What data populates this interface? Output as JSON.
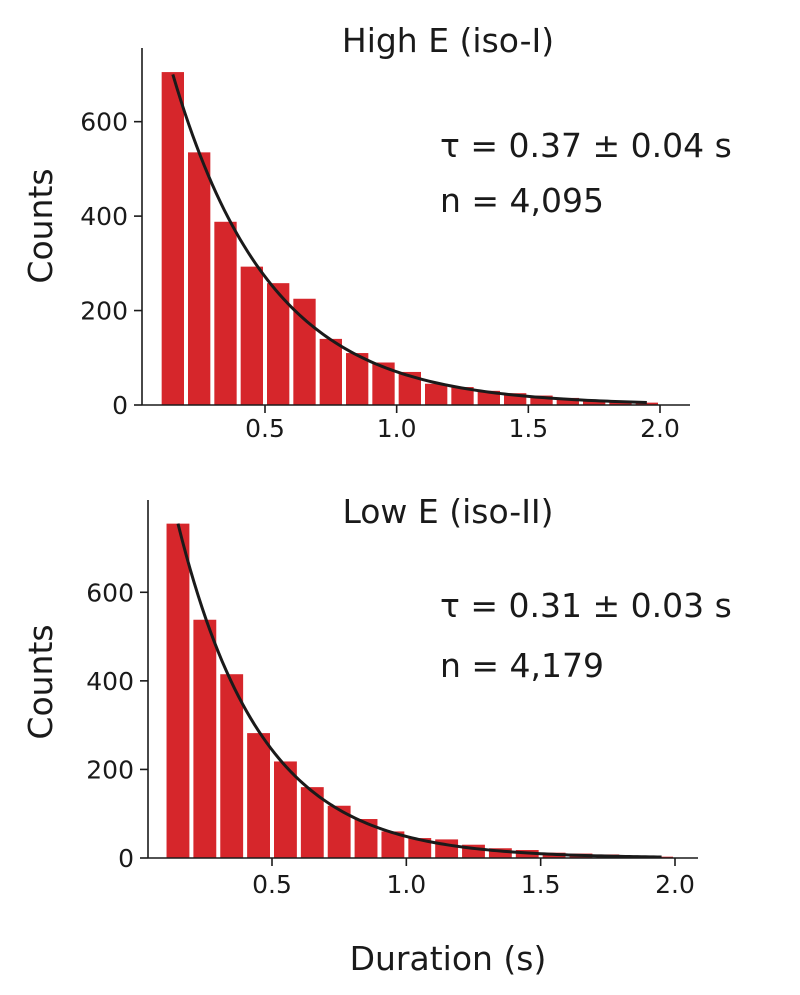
{
  "colors": {
    "bar": "#d6262b",
    "fit": "#1a1a1a",
    "text": "#1a1a1a"
  },
  "x_axis_label": "Duration (s)",
  "chart_data": [
    {
      "type": "bar",
      "title": "High E (iso-I)",
      "ylabel": "Counts",
      "xlabel": "Duration (s)",
      "xlim": [
        0.05,
        2.05
      ],
      "ylim": [
        0,
        720
      ],
      "xticks": [
        0.5,
        1.0,
        1.5,
        2.0
      ],
      "xtick_labels": [
        "0.5",
        "1.0",
        "1.5",
        "2.0"
      ],
      "yticks": [
        0,
        200,
        400,
        600
      ],
      "ytick_labels": [
        "0",
        "200",
        "400",
        "600"
      ],
      "bin_width": 0.1,
      "x": [
        0.15,
        0.25,
        0.35,
        0.45,
        0.55,
        0.65,
        0.75,
        0.85,
        0.95,
        1.05,
        1.15,
        1.25,
        1.35,
        1.45,
        1.55,
        1.65,
        1.75,
        1.85,
        1.95
      ],
      "values": [
        705,
        535,
        388,
        293,
        258,
        225,
        140,
        110,
        90,
        70,
        45,
        38,
        30,
        25,
        20,
        15,
        10,
        8,
        5
      ],
      "fit": {
        "name": "exponential fit",
        "tau": 0.37,
        "amplitude": 700,
        "x0": 0.15,
        "x_end": 1.95
      },
      "annotations": [
        "τ = 0.37 ± 0.04 s",
        "n = 4,095"
      ],
      "grid": false,
      "legend": "none"
    },
    {
      "type": "bar",
      "title": "Low E (iso-II)",
      "ylabel": "Counts",
      "xlabel": "Duration (s)",
      "xlim": [
        0.05,
        2.05
      ],
      "ylim": [
        0,
        770
      ],
      "xticks": [
        0.5,
        1.0,
        1.5,
        2.0
      ],
      "xtick_labels": [
        "0.5",
        "1.0",
        "1.5",
        "2.0"
      ],
      "yticks": [
        0,
        200,
        400,
        600
      ],
      "ytick_labels": [
        "0",
        "200",
        "400",
        "600"
      ],
      "bin_width": 0.1,
      "x": [
        0.15,
        0.25,
        0.35,
        0.45,
        0.55,
        0.65,
        0.75,
        0.85,
        0.95,
        1.05,
        1.15,
        1.25,
        1.35,
        1.45,
        1.55,
        1.65,
        1.75,
        1.85,
        1.95
      ],
      "values": [
        755,
        538,
        415,
        282,
        218,
        160,
        118,
        88,
        60,
        45,
        42,
        30,
        22,
        18,
        12,
        10,
        8,
        5,
        3
      ],
      "fit": {
        "name": "exponential fit",
        "tau": 0.31,
        "amplitude": 755,
        "x0": 0.15,
        "x_end": 1.95
      },
      "annotations": [
        "τ = 0.31 ± 0.03 s",
        "n = 4,179"
      ],
      "grid": false,
      "legend": "none"
    }
  ]
}
